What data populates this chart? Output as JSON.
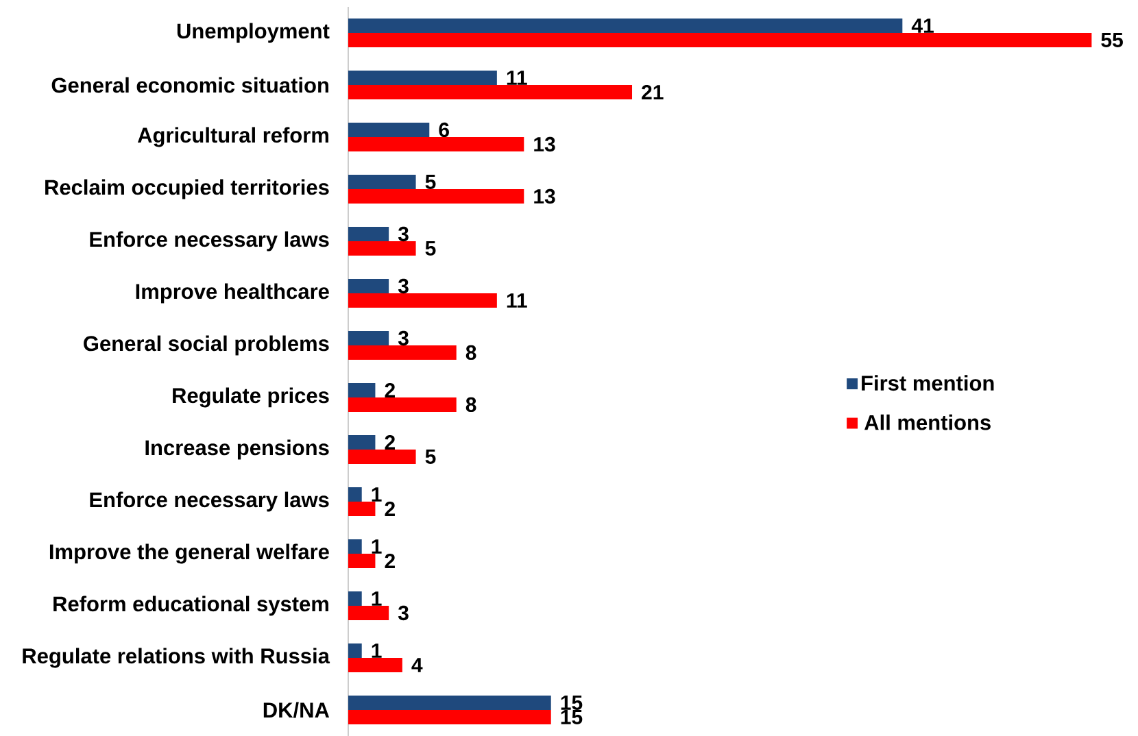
{
  "chart_data": {
    "type": "bar",
    "orientation": "horizontal",
    "categories": [
      "Unemployment",
      "General economic situation",
      "Agricultural reform",
      "Reclaim occupied territories",
      "Enforce necessary laws",
      "Improve healthcare",
      "General social problems",
      "Regulate prices",
      "Increase pensions",
      "Enforce necessary laws",
      "Improve the general welfare",
      "Reform educational system",
      "Regulate relations with Russia",
      "DK/NA"
    ],
    "series": [
      {
        "name": "First mention",
        "color": "#1f497d",
        "values": [
          41,
          11,
          6,
          5,
          3,
          3,
          3,
          2,
          2,
          1,
          1,
          1,
          1,
          15
        ]
      },
      {
        "name": "All mentions",
        "color": "#ff0000",
        "values": [
          55,
          21,
          13,
          13,
          5,
          11,
          8,
          8,
          5,
          2,
          2,
          3,
          4,
          15
        ]
      }
    ],
    "data_labels": true,
    "legend": "right"
  }
}
